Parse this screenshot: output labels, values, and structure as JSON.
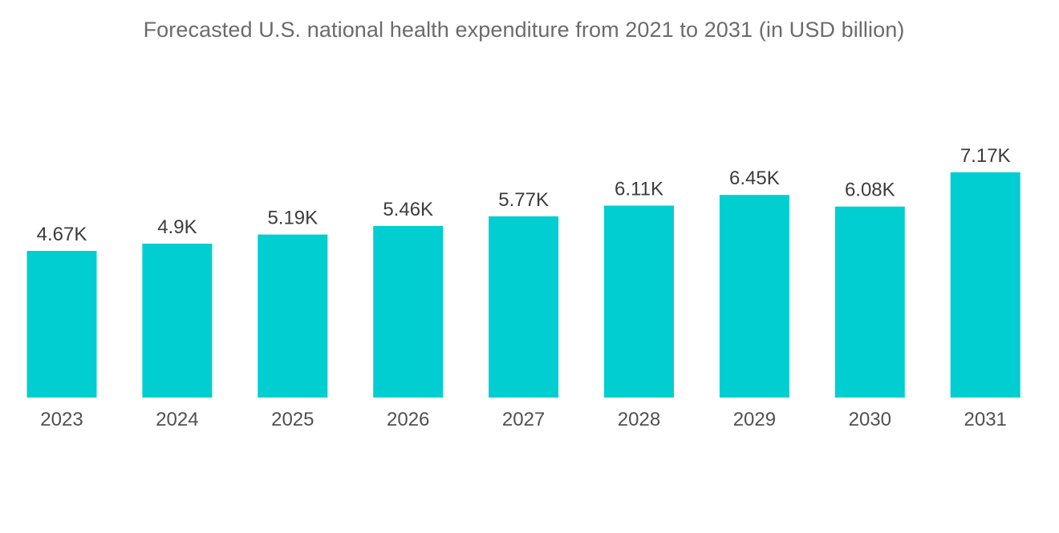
{
  "title": "Forecasted U.S. national health expenditure from 2021 to 2031 (in USD billion)",
  "colors": {
    "bar": "#00CED1"
  },
  "chart_data": {
    "type": "bar",
    "title": "Forecasted U.S. national health expenditure from 2021 to 2031 (in USD billion)",
    "categories": [
      "2023",
      "2024",
      "2025",
      "2026",
      "2027",
      "2028",
      "2029",
      "2030",
      "2031"
    ],
    "values": [
      4670,
      4900,
      5190,
      5460,
      5770,
      6110,
      6450,
      6080,
      7170
    ],
    "data_labels": [
      "4.67K",
      "4.9K",
      "5.19K",
      "5.46K",
      "5.77K",
      "6.11K",
      "6.45K",
      "6.08K",
      "7.17K"
    ],
    "xlabel": "",
    "ylabel": "",
    "ylim": [
      0,
      8000
    ],
    "grid": false,
    "legend": "none",
    "y_axis_visible": false
  }
}
